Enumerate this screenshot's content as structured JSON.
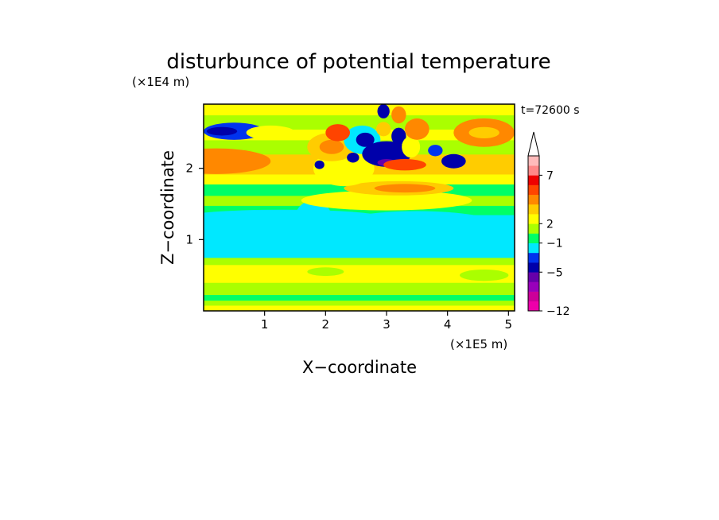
{
  "chart_data": {
    "type": "heatmap",
    "title": "disturbunce of potential temperature",
    "xlabel": "X−coordinate",
    "ylabel": "Z−coordinate",
    "x_unit": "(×1E5 m)",
    "y_unit": "(×1E4 m)",
    "time_label": "t=72600 s",
    "xlim": [
      0,
      5.1
    ],
    "ylim": [
      0,
      2.9
    ],
    "x_ticks": [
      "1",
      "2",
      "3",
      "4",
      "5"
    ],
    "y_ticks": [
      "1",
      "2"
    ],
    "colorbar": {
      "colors": [
        "#ee00aa",
        "#cc0099",
        "#9900bb",
        "#6600aa",
        "#0000aa",
        "#0033ee",
        "#00e8ff",
        "#00ff66",
        "#aaff00",
        "#ffff00",
        "#ffcc00",
        "#ff8800",
        "#ff4400",
        "#ee0000",
        "#ff8888",
        "#ffbbbb"
      ],
      "extend_color": "#ffffff",
      "tick_labels": [
        "7",
        "2",
        "−1",
        "−5",
        "−12"
      ]
    },
    "bands": [
      {
        "z0": 0.0,
        "z1": 0.08,
        "level": 9
      },
      {
        "z0": 0.08,
        "z1": 0.15,
        "level": 8
      },
      {
        "z0": 0.15,
        "z1": 0.23,
        "level": 7
      },
      {
        "z0": 0.23,
        "z1": 0.4,
        "level": 8
      },
      {
        "z0": 0.4,
        "z1": 0.65,
        "level": 9
      },
      {
        "z0": 0.65,
        "z1": 0.75,
        "level": 8
      },
      {
        "z0": 0.75,
        "z1": 1.35,
        "level": 6
      },
      {
        "z0": 1.35,
        "z1": 1.48,
        "level": 7
      },
      {
        "z0": 1.48,
        "z1": 1.62,
        "level": 8
      },
      {
        "z0": 1.62,
        "z1": 1.78,
        "level": 7
      },
      {
        "z0": 1.78,
        "z1": 1.92,
        "level": 9
      },
      {
        "z0": 1.92,
        "z1": 2.2,
        "level": 10
      },
      {
        "z0": 2.2,
        "z1": 2.4,
        "level": 8
      },
      {
        "z0": 2.4,
        "z1": 2.55,
        "level": 9
      },
      {
        "z0": 2.55,
        "z1": 2.75,
        "level": 8
      },
      {
        "z0": 2.75,
        "z1": 2.9,
        "level": 9
      }
    ],
    "patches": [
      {
        "x": 0.2,
        "z": 2.1,
        "rx": 0.9,
        "rz": 0.18,
        "level": 11
      },
      {
        "x": 0.2,
        "z": 2.1,
        "rx": 0.6,
        "rz": 0.08,
        "level": 11
      },
      {
        "x": 0.5,
        "z": 2.52,
        "rx": 0.5,
        "rz": 0.12,
        "level": 5
      },
      {
        "x": 0.3,
        "z": 2.52,
        "rx": 0.25,
        "rz": 0.06,
        "level": 4
      },
      {
        "x": 1.1,
        "z": 2.5,
        "rx": 0.4,
        "rz": 0.1,
        "level": 9
      },
      {
        "x": 1.3,
        "z": 1.3,
        "rx": 1.7,
        "rz": 0.12,
        "level": 6
      },
      {
        "x": 3.5,
        "z": 1.1,
        "rx": 1.6,
        "rz": 0.3,
        "level": 6
      },
      {
        "x": 1.8,
        "z": 1.3,
        "rx": 0.3,
        "rz": 0.25,
        "level": 6
      },
      {
        "x": 0.9,
        "z": 0.52,
        "rx": 1.1,
        "rz": 0.1,
        "level": 9
      },
      {
        "x": 3.1,
        "z": 0.52,
        "rx": 1.6,
        "rz": 0.1,
        "level": 9
      },
      {
        "x": 2.0,
        "z": 0.55,
        "rx": 0.3,
        "rz": 0.06,
        "level": 8
      },
      {
        "x": 4.6,
        "z": 0.5,
        "rx": 0.4,
        "rz": 0.08,
        "level": 8
      },
      {
        "x": 3.0,
        "z": 1.55,
        "rx": 1.4,
        "rz": 0.14,
        "level": 9
      },
      {
        "x": 3.2,
        "z": 1.72,
        "rx": 0.9,
        "rz": 0.1,
        "level": 10
      },
      {
        "x": 3.3,
        "z": 1.72,
        "rx": 0.5,
        "rz": 0.06,
        "level": 11
      },
      {
        "x": 2.3,
        "z": 2.0,
        "rx": 0.5,
        "rz": 0.25,
        "level": 9
      },
      {
        "x": 2.1,
        "z": 2.3,
        "rx": 0.4,
        "rz": 0.2,
        "level": 10
      },
      {
        "x": 2.1,
        "z": 2.3,
        "rx": 0.2,
        "rz": 0.1,
        "level": 11
      },
      {
        "x": 2.6,
        "z": 2.4,
        "rx": 0.3,
        "rz": 0.2,
        "level": 6
      },
      {
        "x": 2.65,
        "z": 2.4,
        "rx": 0.15,
        "rz": 0.1,
        "level": 4
      },
      {
        "x": 2.95,
        "z": 2.8,
        "rx": 0.1,
        "rz": 0.1,
        "level": 4
      },
      {
        "x": 3.2,
        "z": 2.75,
        "rx": 0.12,
        "rz": 0.12,
        "level": 11
      },
      {
        "x": 2.95,
        "z": 2.55,
        "rx": 0.12,
        "rz": 0.1,
        "level": 10
      },
      {
        "x": 3.2,
        "z": 2.45,
        "rx": 0.12,
        "rz": 0.12,
        "level": 4
      },
      {
        "x": 3.0,
        "z": 2.2,
        "rx": 0.4,
        "rz": 0.18,
        "level": 4
      },
      {
        "x": 3.0,
        "z": 2.08,
        "rx": 0.15,
        "rz": 0.05,
        "level": 3
      },
      {
        "x": 3.4,
        "z": 2.3,
        "rx": 0.15,
        "rz": 0.15,
        "level": 9
      },
      {
        "x": 3.5,
        "z": 2.55,
        "rx": 0.2,
        "rz": 0.15,
        "level": 11
      },
      {
        "x": 3.8,
        "z": 2.25,
        "rx": 0.12,
        "rz": 0.08,
        "level": 5
      },
      {
        "x": 4.1,
        "z": 2.1,
        "rx": 0.2,
        "rz": 0.1,
        "level": 4
      },
      {
        "x": 4.6,
        "z": 2.5,
        "rx": 0.5,
        "rz": 0.2,
        "level": 11
      },
      {
        "x": 4.6,
        "z": 2.5,
        "rx": 0.25,
        "rz": 0.08,
        "level": 10
      },
      {
        "x": 3.3,
        "z": 2.05,
        "rx": 0.35,
        "rz": 0.08,
        "level": 12
      },
      {
        "x": 2.2,
        "z": 2.5,
        "rx": 0.2,
        "rz": 0.12,
        "level": 12
      },
      {
        "x": 2.45,
        "z": 2.15,
        "rx": 0.1,
        "rz": 0.07,
        "level": 4
      },
      {
        "x": 1.9,
        "z": 2.05,
        "rx": 0.08,
        "rz": 0.06,
        "level": 4
      }
    ]
  }
}
